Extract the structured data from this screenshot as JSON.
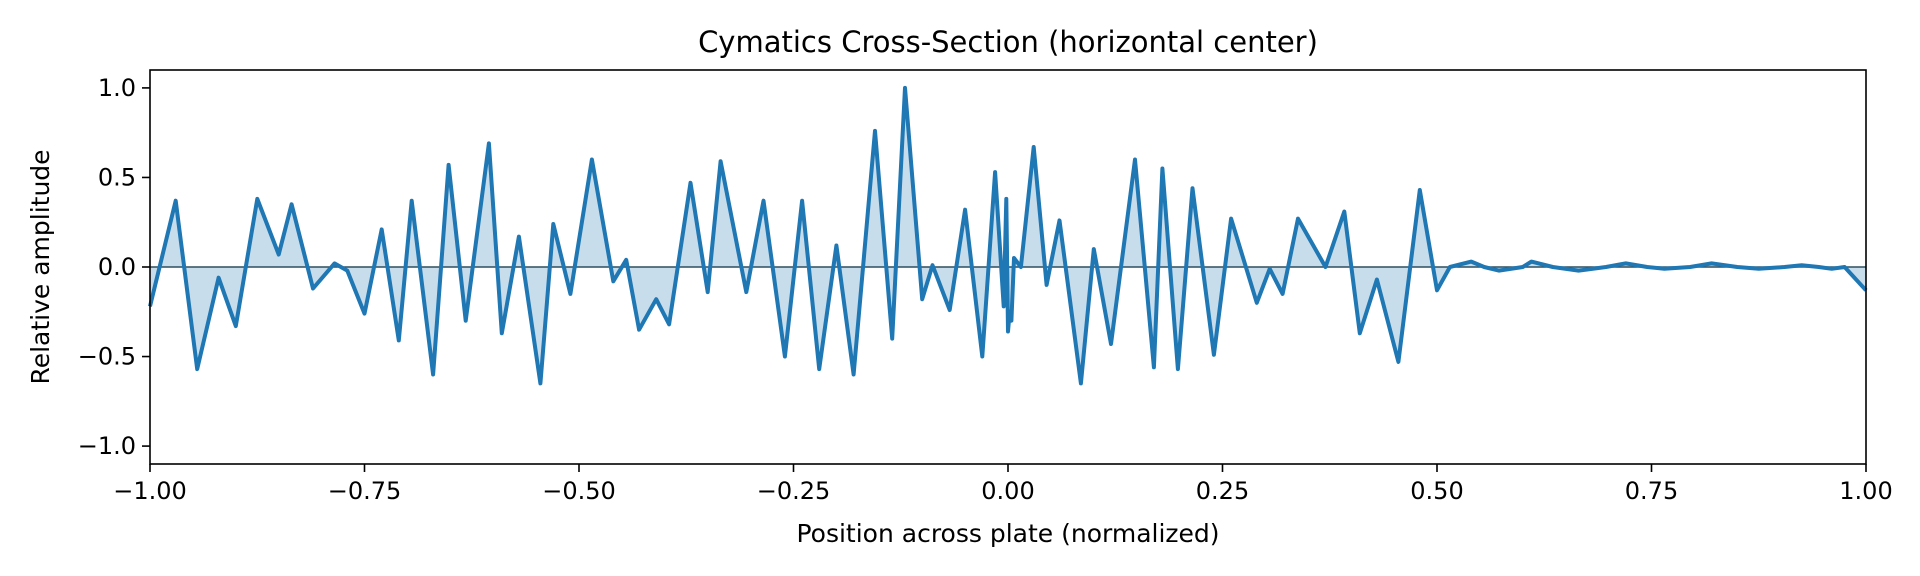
{
  "chart_data": {
    "type": "area",
    "title": "Cymatics Cross-Section (horizontal center)",
    "xlabel": "Position across plate (normalized)",
    "ylabel": "Relative amplitude",
    "xlim": [
      -1.0,
      1.0
    ],
    "ylim": [
      -1.1,
      1.1
    ],
    "xticks": [
      -1.0,
      -0.75,
      -0.5,
      -0.25,
      0.0,
      0.25,
      0.5,
      0.75,
      1.0
    ],
    "xtick_labels": [
      "−1.00",
      "−0.75",
      "−0.50",
      "−0.25",
      "0.00",
      "0.25",
      "0.50",
      "0.75",
      "1.00"
    ],
    "yticks": [
      1.0,
      0.5,
      0.0,
      -0.5,
      -1.0
    ],
    "ytick_labels": [
      "1.0",
      "0.5",
      "0.0",
      "−0.5",
      "−1.0"
    ],
    "grid": false,
    "baseline": 0.0,
    "colors": {
      "line": "#1f77b4",
      "fill": "#1f77b4",
      "baseline": "#2f4f5f"
    },
    "series": [
      {
        "x": [
          -1.0,
          -0.97,
          -0.945,
          -0.92,
          -0.9,
          -0.875,
          -0.85,
          -0.835,
          -0.81,
          -0.785,
          -0.77,
          -0.75,
          -0.73,
          -0.71,
          -0.695,
          -0.67,
          -0.652,
          -0.632,
          -0.605,
          -0.59,
          -0.57,
          -0.545,
          -0.53,
          -0.51,
          -0.485,
          -0.46,
          -0.445,
          -0.43,
          -0.41,
          -0.395,
          -0.37,
          -0.35,
          -0.335,
          -0.305,
          -0.285,
          -0.26,
          -0.24,
          -0.22,
          -0.2,
          -0.18,
          -0.155,
          -0.135,
          -0.12,
          -0.1,
          -0.088,
          -0.068,
          -0.05,
          -0.03,
          -0.015,
          -0.005,
          -0.002,
          0.0,
          0.002,
          0.004,
          0.007,
          0.015,
          0.03,
          0.045,
          0.06,
          0.085,
          0.1,
          0.12,
          0.148,
          0.17,
          0.18,
          0.198,
          0.215,
          0.24,
          0.26,
          0.29,
          0.305,
          0.32,
          0.338,
          0.37,
          0.392,
          0.41,
          0.43,
          0.455,
          0.48,
          0.5,
          0.515,
          0.54,
          0.555,
          0.572,
          0.6,
          0.61,
          0.635,
          0.665,
          0.697,
          0.72,
          0.745,
          0.765,
          0.795,
          0.82,
          0.85,
          0.875,
          0.905,
          0.925,
          0.945,
          0.96,
          0.975,
          1.0
        ],
        "y": [
          -0.22,
          0.37,
          -0.57,
          -0.06,
          -0.33,
          0.38,
          0.07,
          0.35,
          -0.12,
          0.02,
          -0.02,
          -0.26,
          0.21,
          -0.41,
          0.37,
          -0.6,
          0.57,
          -0.3,
          0.69,
          -0.37,
          0.17,
          -0.65,
          0.24,
          -0.15,
          0.6,
          -0.08,
          0.04,
          -0.35,
          -0.18,
          -0.32,
          0.47,
          -0.14,
          0.59,
          -0.14,
          0.37,
          -0.5,
          0.37,
          -0.57,
          0.12,
          -0.6,
          0.76,
          -0.4,
          1.0,
          -0.18,
          0.01,
          -0.24,
          0.32,
          -0.5,
          0.53,
          -0.22,
          0.38,
          -0.36,
          -0.25,
          -0.3,
          0.05,
          0.0,
          0.67,
          -0.1,
          0.26,
          -0.65,
          0.1,
          -0.43,
          0.6,
          -0.56,
          0.55,
          -0.57,
          0.44,
          -0.49,
          0.27,
          -0.2,
          -0.01,
          -0.15,
          0.27,
          0.0,
          0.31,
          -0.37,
          -0.07,
          -0.53,
          0.43,
          -0.13,
          0.0,
          0.03,
          0.0,
          -0.02,
          0.0,
          0.03,
          0.0,
          -0.02,
          0.0,
          0.02,
          0.0,
          -0.01,
          0.0,
          0.02,
          0.0,
          -0.01,
          0.0,
          0.01,
          0.0,
          -0.01,
          0.0,
          -0.13
        ]
      }
    ]
  }
}
